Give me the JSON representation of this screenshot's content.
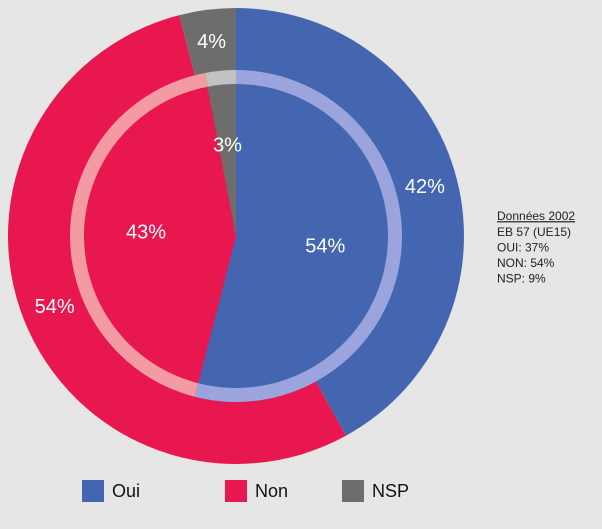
{
  "chart_data": {
    "type": "nested-pie",
    "categories": [
      "Oui",
      "Non",
      "NSP"
    ],
    "colors": [
      "#4466b0",
      "#e8174f",
      "#6d6d6d"
    ],
    "ring_colors": [
      "#9ba4dc",
      "#f49aa2",
      "#c2c2c2"
    ],
    "rings": [
      {
        "values": [
          42,
          54,
          4
        ],
        "value_labels": [
          "42%",
          "54%",
          "4%"
        ]
      },
      {
        "values": [
          54,
          43,
          3
        ],
        "value_labels": [
          "54%",
          "43%",
          "3%"
        ]
      }
    ],
    "annotation": [
      "Données 2002",
      "EB 57 (UE15)",
      "OUI: 37%",
      "NON: 54%",
      "NSP: 9%"
    ]
  }
}
